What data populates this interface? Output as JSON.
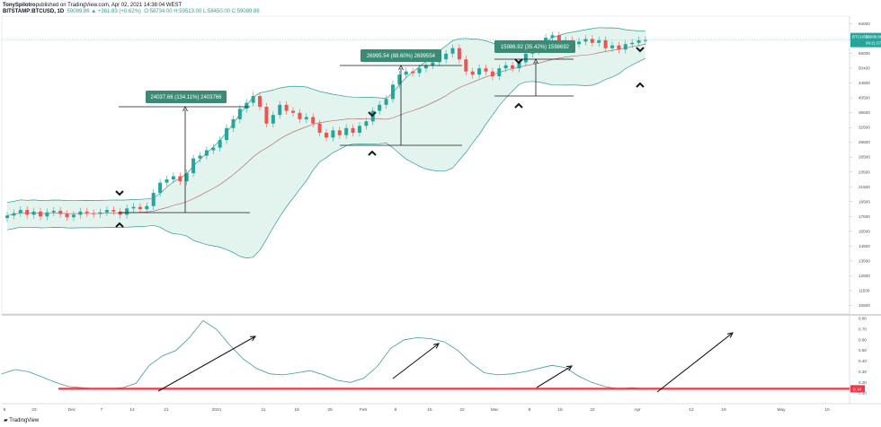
{
  "header": {
    "publisher": "TonySpilotro",
    "published_line": "published on TradingView.com, Apr 02, 2021 14:38:04 WEST",
    "symbol": "BITSTAMP:BTCUSD, 1D",
    "price_change": "59089.86 ▲ +361.83 (+0.62%)",
    "ohlc": "O:58734.00 H:59513.00 L:58450.00 C:59089.86"
  },
  "branding": {
    "logo_text": "TradingView"
  },
  "colors": {
    "up": "#26a69a",
    "down": "#ef5350",
    "band": "#2e9d8f",
    "band_fill": "#e3f4ef",
    "basis": "#b25b5b",
    "osc": "#3c9d94",
    "baseline": "#f23645",
    "measure_box": "#3b8a74"
  },
  "chart_data": [
    {
      "type": "candlestick",
      "title": "",
      "series": [
        {
          "name": "BTCUSD",
          "values_close": [
            18500,
            18800,
            19200,
            18600,
            19000,
            18400,
            18900,
            19100,
            18700,
            18300,
            18600,
            19000,
            18800,
            18700,
            18900,
            19200,
            19000,
            18600,
            19400,
            19600,
            19300,
            19700,
            21500,
            23000,
            23500,
            24000,
            23200,
            24500,
            27000,
            27500,
            28500,
            29000,
            30500,
            33000,
            35000,
            37500,
            39000,
            40800,
            38000,
            34000,
            36000,
            38500,
            37000,
            36500,
            35000,
            35500,
            34000,
            32000,
            31000,
            32500,
            31500,
            33000,
            32000,
            33500,
            34500,
            37000,
            38500,
            40000,
            44000,
            47000,
            48000,
            47500,
            49000,
            50000,
            51000,
            52000,
            54000,
            56000,
            52000,
            48000,
            47000,
            49000,
            48000,
            46500,
            49000,
            50000,
            49000,
            51000,
            54000,
            55000,
            57000,
            60000,
            61000,
            58500,
            59000,
            57500,
            58500,
            59500,
            58000,
            59000,
            56000,
            57000,
            55500,
            57500,
            58000,
            59000,
            59089
          ],
          "values_open": [
            18200,
            18500,
            18800,
            19200,
            18600,
            19000,
            18400,
            18900,
            19100,
            18700,
            18300,
            18600,
            19000,
            18800,
            18700,
            18900,
            19200,
            19000,
            18600,
            19400,
            19600,
            19300,
            19700,
            21500,
            23000,
            23500,
            24000,
            23200,
            24500,
            27000,
            27500,
            28500,
            29000,
            30500,
            33000,
            35000,
            37500,
            39000,
            40800,
            38000,
            34000,
            36000,
            38500,
            37000,
            36500,
            35000,
            35500,
            34000,
            32000,
            31000,
            32500,
            31500,
            33000,
            32000,
            33500,
            34500,
            37000,
            38500,
            40000,
            44000,
            47000,
            48000,
            47500,
            49000,
            50000,
            51000,
            52000,
            54000,
            56000,
            52000,
            48000,
            47000,
            49000,
            48000,
            46500,
            49000,
            50000,
            49000,
            51000,
            54000,
            55000,
            57000,
            60000,
            61000,
            58500,
            59000,
            57500,
            58500,
            59500,
            58000,
            59000,
            56000,
            57000,
            55500,
            57500,
            58000,
            58734
          ]
        }
      ],
      "price_axis_labels": [
        "64000",
        "60000",
        "56000",
        "50400",
        "44500",
        "40500",
        "36500",
        "32500",
        "29500",
        "26500",
        "23500",
        "21500",
        "19500",
        "17500",
        "16500",
        "14500",
        "13500",
        "12500",
        "11500",
        "10500"
      ],
      "last_price_tag": {
        "symbol": "BTCUSD",
        "price": "59089.86",
        "timer": "09:21:57"
      },
      "measurements": [
        {
          "label": "24037.66 (134.11%) 2403766"
        },
        {
          "label": "26995.54 (88.60%) 2699554"
        },
        {
          "label": "15986.92 (35.42%) 1598692"
        }
      ]
    },
    {
      "type": "line",
      "title": "",
      "ylim": [
        0,
        0.8
      ],
      "ytick_labels": [
        "0.80",
        "0.70",
        "0.60",
        "0.50",
        "0.40",
        "0.30",
        "0.20",
        "0.10"
      ],
      "last_value_tag": "0.14",
      "baseline_value": 0.14,
      "series": [
        {
          "name": "",
          "values": [
            0.28,
            0.32,
            0.3,
            0.25,
            0.2,
            0.16,
            0.15,
            0.14,
            0.14,
            0.15,
            0.19,
            0.36,
            0.45,
            0.5,
            0.62,
            0.78,
            0.7,
            0.55,
            0.42,
            0.33,
            0.28,
            0.27,
            0.29,
            0.31,
            0.27,
            0.22,
            0.2,
            0.24,
            0.35,
            0.52,
            0.6,
            0.62,
            0.61,
            0.58,
            0.5,
            0.38,
            0.29,
            0.27,
            0.28,
            0.3,
            0.33,
            0.36,
            0.34,
            0.26,
            0.2,
            0.16,
            0.14,
            0.15,
            0.14
          ]
        }
      ]
    }
  ],
  "x_axis_labels": [
    "9",
    "23",
    "Dec",
    "7",
    "14",
    "21",
    "2021",
    "11",
    "18",
    "25",
    "Feb",
    "8",
    "15",
    "22",
    "Mar",
    "8",
    "15",
    "22",
    "Apr",
    "12",
    "19",
    "May",
    "10"
  ]
}
